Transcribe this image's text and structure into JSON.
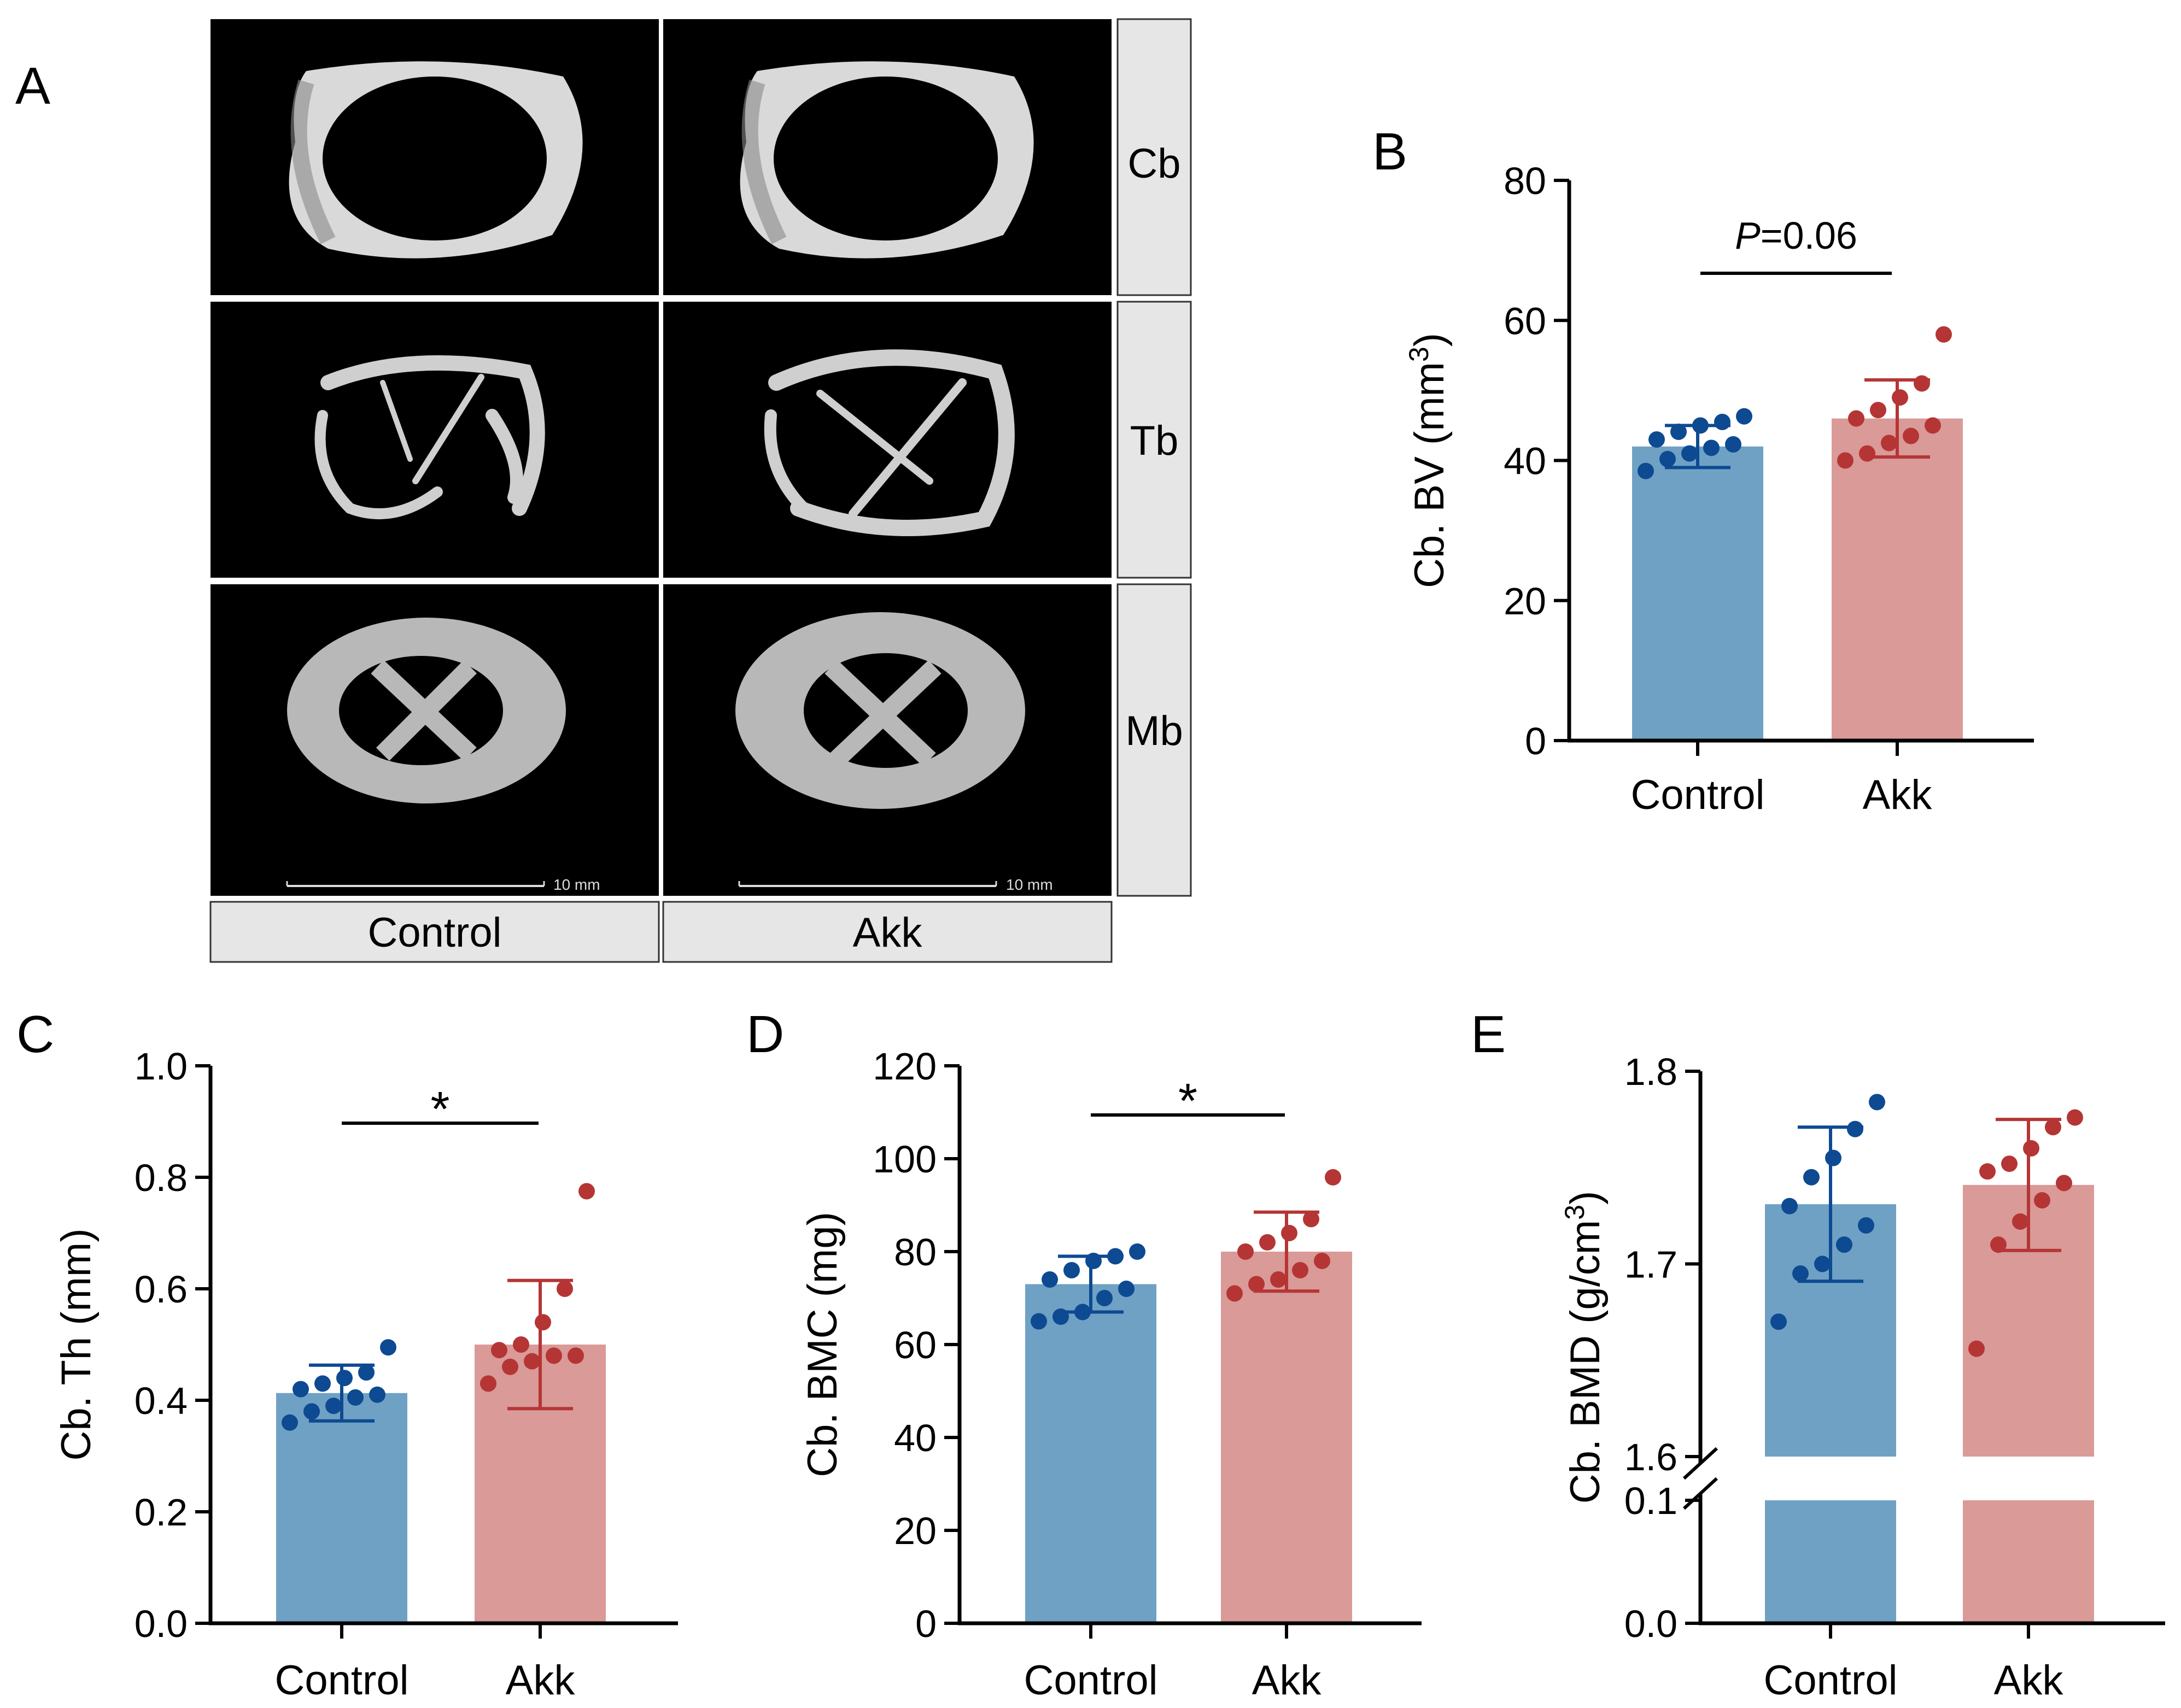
{
  "panel_letters": {
    "a": "A",
    "b": "B",
    "c": "C",
    "d": "D",
    "e": "E"
  },
  "micro_ct": {
    "column_labels": [
      "Control",
      "Akk"
    ],
    "row_labels": [
      "Cb",
      "Tb",
      "Mb"
    ],
    "scale_bar_label": "10 mm"
  },
  "colors": {
    "control_bar": "#6fa1c4",
    "akk_bar": "#d99a98",
    "control_dot": "#0d4a92",
    "akk_dot": "#b53535"
  },
  "chart_data": [
    {
      "id": "B",
      "type": "bar",
      "categories": [
        "Control",
        "Akk"
      ],
      "values": [
        42,
        46
      ],
      "errors": [
        3,
        5.5
      ],
      "ylabel": "Cb. BV (mm",
      "ylabel_sup": "3",
      "ylabel_end": ")",
      "ylim": [
        0,
        80
      ],
      "yticks": [
        "0",
        "20",
        "40",
        "60",
        "80"
      ],
      "significance": {
        "prefix": "P",
        "text": "=0.06"
      },
      "points": [
        [
          38.5,
          40.2,
          41.0,
          41.8,
          42.3,
          43.0,
          44.1,
          45.0,
          45.5,
          46.3
        ],
        [
          40.0,
          41.0,
          42.5,
          43.5,
          45.0,
          46.0,
          47.2,
          49.0,
          51.0,
          58.0
        ]
      ]
    },
    {
      "id": "C",
      "type": "bar",
      "categories": [
        "Control",
        "Akk"
      ],
      "values": [
        0.413,
        0.5
      ],
      "errors": [
        0.05,
        0.115
      ],
      "ylabel": "Cb. Th (mm)",
      "ylim": [
        0,
        1
      ],
      "yticks": [
        "0.0",
        "0.2",
        "0.4",
        "0.6",
        "0.8",
        "1.0"
      ],
      "significance": {
        "text": "*"
      },
      "points": [
        [
          0.36,
          0.38,
          0.39,
          0.405,
          0.41,
          0.42,
          0.43,
          0.44,
          0.45,
          0.495
        ],
        [
          0.43,
          0.46,
          0.47,
          0.48,
          0.48,
          0.49,
          0.5,
          0.54,
          0.6,
          0.775
        ]
      ]
    },
    {
      "id": "D",
      "type": "bar",
      "categories": [
        "Control",
        "Akk"
      ],
      "values": [
        73,
        80
      ],
      "errors": [
        6,
        8.5
      ],
      "ylabel": "Cb. BMC (mg)",
      "ylim": [
        0,
        120
      ],
      "yticks": [
        "0",
        "20",
        "40",
        "60",
        "80",
        "100",
        "120"
      ],
      "significance": {
        "text": "*"
      },
      "points": [
        [
          65,
          66,
          67,
          70,
          72,
          74,
          76,
          78,
          79,
          80
        ],
        [
          71,
          73,
          74,
          76,
          78,
          80,
          82,
          84,
          87,
          96
        ]
      ]
    },
    {
      "id": "E",
      "type": "bar",
      "categories": [
        "Control",
        "Akk"
      ],
      "values": [
        1.731,
        1.741
      ],
      "errors": [
        0.04,
        0.034
      ],
      "ylabel": "Cb. BMD (g/cm",
      "ylabel_sup": "3",
      "ylabel_end": ")",
      "ylim": [
        1.6,
        1.8
      ],
      "lower_segment": [
        0.0,
        0.1
      ],
      "yticks_upper": [
        "1.6",
        "1.7",
        "1.8"
      ],
      "yticks_lower": [
        "0.0",
        "0.1"
      ],
      "points": [
        [
          1.67,
          1.695,
          1.7,
          1.71,
          1.72,
          1.73,
          1.745,
          1.755,
          1.77,
          1.784
        ],
        [
          1.656,
          1.71,
          1.722,
          1.733,
          1.742,
          1.748,
          1.752,
          1.76,
          1.771,
          1.776
        ]
      ]
    }
  ]
}
